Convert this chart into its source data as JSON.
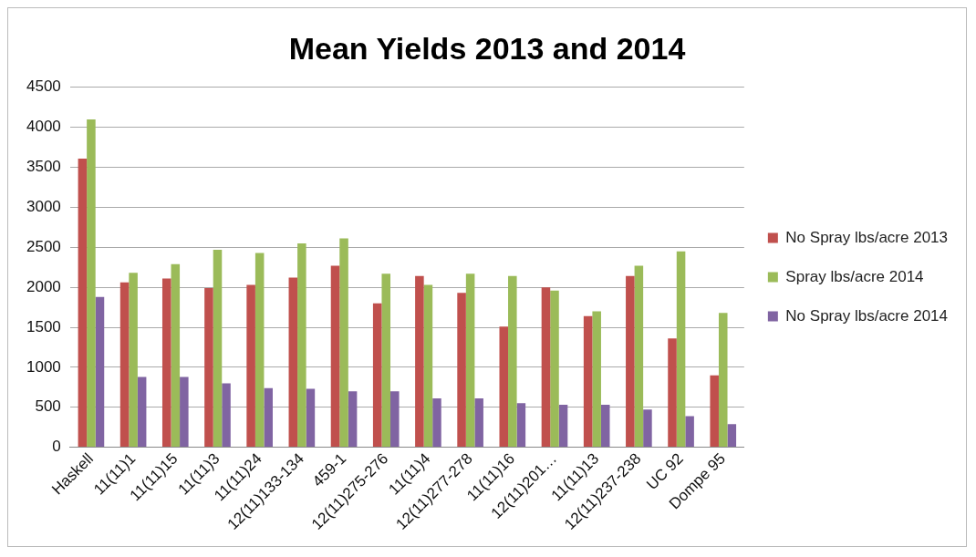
{
  "chart_data": {
    "type": "bar",
    "title": "Mean Yields 2013 and 2014",
    "categories": [
      "Haskell",
      "11(11)1",
      "11(11)15",
      "11(11)3",
      "11(11)24",
      "12(11)133-134",
      "459-1",
      "12(11)275-276",
      "11(11)4",
      "12(11)277-278",
      "11(11)16",
      "12(11)201…",
      "11(11)13",
      "12(11)237-238",
      "UC 92",
      "Dompe 95"
    ],
    "series": [
      {
        "name": "No Spray lbs/acre 2013",
        "color": "#c0504d",
        "values": [
          3610,
          2060,
          2110,
          1990,
          2030,
          2120,
          2270,
          1800,
          2140,
          1930,
          1510,
          2000,
          1640,
          2140,
          1360,
          900
        ]
      },
      {
        "name": "Spray lbs/acre 2014",
        "color": "#9bbb59",
        "values": [
          4100,
          2180,
          2290,
          2470,
          2430,
          2550,
          2610,
          2170,
          2030,
          2170,
          2140,
          1960,
          1700,
          2270,
          2450,
          1680
        ]
      },
      {
        "name": "No Spray lbs/acre 2014",
        "color": "#8064a2",
        "values": [
          1880,
          880,
          880,
          800,
          740,
          730,
          700,
          700,
          610,
          610,
          550,
          530,
          530,
          470,
          390,
          290
        ]
      }
    ],
    "ylim": [
      0,
      4500
    ],
    "yticks": [
      0,
      500,
      1000,
      1500,
      2000,
      2500,
      3000,
      3500,
      4000,
      4500
    ],
    "grid": "y",
    "legend": "right"
  }
}
